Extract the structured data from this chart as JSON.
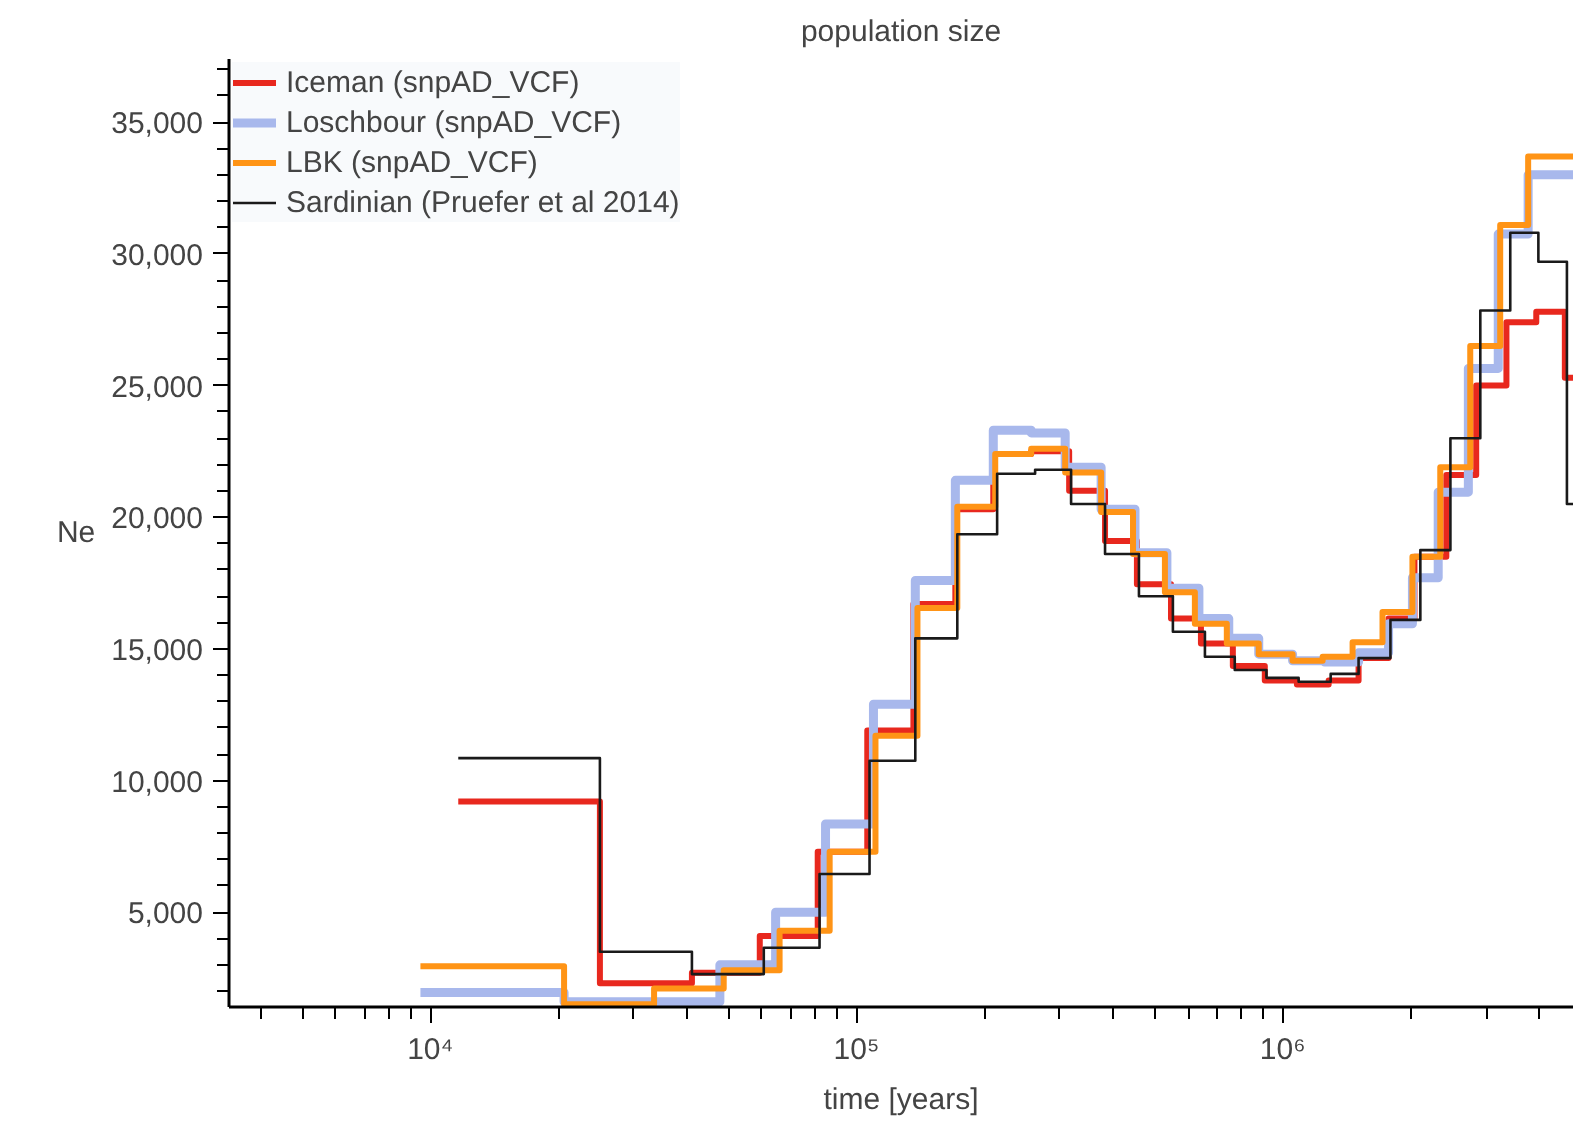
{
  "chart_data": {
    "type": "step",
    "title": "population size",
    "xlabel": "time [years]",
    "ylabel": "Ne",
    "log": "x",
    "legend": "top left",
    "grid": false,
    "xlim": [
      3370,
      4800000
    ],
    "ylim": [
      1400,
      37400
    ],
    "xticks": [
      {
        "value": 4000,
        "label": null
      },
      {
        "value": 5000,
        "label": null
      },
      {
        "value": 6000,
        "label": null
      },
      {
        "value": 7000,
        "label": null
      },
      {
        "value": 8000,
        "label": null
      },
      {
        "value": 9000,
        "label": null
      },
      {
        "value": 10000,
        "label": "10⁴"
      },
      {
        "value": 20000,
        "label": null
      },
      {
        "value": 30000,
        "label": null
      },
      {
        "value": 40000,
        "label": null
      },
      {
        "value": 50000,
        "label": null
      },
      {
        "value": 60000,
        "label": null
      },
      {
        "value": 70000,
        "label": null
      },
      {
        "value": 80000,
        "label": null
      },
      {
        "value": 90000,
        "label": null
      },
      {
        "value": 100000,
        "label": "10⁵"
      },
      {
        "value": 200000,
        "label": null
      },
      {
        "value": 300000,
        "label": null
      },
      {
        "value": 400000,
        "label": null
      },
      {
        "value": 500000,
        "label": null
      },
      {
        "value": 600000,
        "label": null
      },
      {
        "value": 700000,
        "label": null
      },
      {
        "value": 800000,
        "label": null
      },
      {
        "value": 900000,
        "label": null
      },
      {
        "value": 1000000,
        "label": "10⁶"
      },
      {
        "value": 2000000,
        "label": null
      },
      {
        "value": 3000000,
        "label": null
      },
      {
        "value": 4000000,
        "label": null
      }
    ],
    "yticks": [
      {
        "value": 2000,
        "label": null
      },
      {
        "value": 3000,
        "label": null
      },
      {
        "value": 4000,
        "label": null
      },
      {
        "value": 5000,
        "label": "5,000"
      },
      {
        "value": 6000,
        "label": null
      },
      {
        "value": 7000,
        "label": null
      },
      {
        "value": 8000,
        "label": null
      },
      {
        "value": 9000,
        "label": null
      },
      {
        "value": 10000,
        "label": "10,000"
      },
      {
        "value": 11000,
        "label": null
      },
      {
        "value": 12000,
        "label": null
      },
      {
        "value": 13000,
        "label": null
      },
      {
        "value": 14000,
        "label": null
      },
      {
        "value": 15000,
        "label": "15,000"
      },
      {
        "value": 16000,
        "label": null
      },
      {
        "value": 17000,
        "label": null
      },
      {
        "value": 18000,
        "label": null
      },
      {
        "value": 19000,
        "label": null
      },
      {
        "value": 20000,
        "label": "20,000"
      },
      {
        "value": 21000,
        "label": null
      },
      {
        "value": 22000,
        "label": null
      },
      {
        "value": 23000,
        "label": null
      },
      {
        "value": 24000,
        "label": null
      },
      {
        "value": 25000,
        "label": "25,000"
      },
      {
        "value": 26000,
        "label": null
      },
      {
        "value": 27000,
        "label": null
      },
      {
        "value": 28000,
        "label": null
      },
      {
        "value": 29000,
        "label": null
      },
      {
        "value": 30000,
        "label": "30,000"
      },
      {
        "value": 31000,
        "label": null
      },
      {
        "value": 32000,
        "label": null
      },
      {
        "value": 33000,
        "label": null
      },
      {
        "value": 34000,
        "label": null
      },
      {
        "value": 35000,
        "label": "35,000"
      },
      {
        "value": 36000,
        "label": null
      },
      {
        "value": 37000,
        "label": null
      }
    ],
    "series": [
      {
        "name": "Iceman (snpAD_VCF)",
        "color": "#e8281e",
        "x": [
          11630,
          25000,
          41100,
          59300,
          81100,
          106000,
          136000,
          170600,
          209400,
          257000,
          315500,
          383000,
          455000,
          547000,
          643000,
          764000,
          908000,
          1080000,
          1282000,
          1507000,
          1772000,
          2038000,
          2421000,
          2845000,
          3350000,
          3936000,
          4593000,
          4800000
        ],
        "values": [
          9200,
          2300,
          2700,
          4100,
          7300,
          11900,
          16700,
          20300,
          22400,
          22500,
          21000,
          19100,
          17450,
          16150,
          15200,
          14350,
          13800,
          13650,
          13800,
          14650,
          16150,
          18500,
          21600,
          25000,
          27400,
          27800,
          25300,
          25300
        ]
      },
      {
        "name": "Loschbour (snpAD_VCF)",
        "color": "#a8b8ec",
        "x": [
          9480,
          20600,
          47800,
          64600,
          84600,
          109600,
          137400,
          170600,
          209400,
          257000,
          308800,
          375000,
          450300,
          535000,
          636000,
          747300,
          878700,
          1055000,
          1254000,
          1507000,
          1772000,
          2016000,
          2317000,
          2727000,
          3205000,
          3767000,
          4800000
        ],
        "values": [
          1950,
          1600,
          3000,
          5000,
          8350,
          12900,
          17600,
          21400,
          23300,
          23200,
          21900,
          20300,
          18650,
          17300,
          16150,
          15400,
          14800,
          14550,
          14500,
          14850,
          15950,
          17700,
          20950,
          25650,
          30750,
          33000,
          33000
        ]
      },
      {
        "name": "LBK (snpAD_VCF)",
        "color": "#ff9416",
        "x": [
          9480,
          20600,
          33500,
          48800,
          66000,
          86500,
          110800,
          139000,
          172400,
          211600,
          257000,
          308800,
          375000,
          445500,
          529300,
          622300,
          739500,
          878700,
          1055000,
          1241000,
          1459000,
          1715000,
          2016000,
          2343000,
          2755000,
          3239000,
          3767000,
          4800000
        ],
        "values": [
          2950,
          1500,
          2100,
          2800,
          4300,
          7300,
          11700,
          16550,
          20400,
          22400,
          22600,
          21700,
          20200,
          18600,
          17150,
          15950,
          15200,
          14800,
          14550,
          14700,
          15250,
          16400,
          18500,
          21900,
          26500,
          31100,
          33700,
          33700
        ]
      },
      {
        "name": "Sardinian (Pruefer et al 2014)",
        "color": "#1a1a1a",
        "x": [
          11630,
          25000,
          41100,
          60600,
          81900,
          107300,
          137400,
          172400,
          213800,
          262500,
          318800,
          383000,
          460000,
          552600,
          657000,
          771900,
          916000,
          1090000,
          1296000,
          1507000,
          1790000,
          2104000,
          2475000,
          2909000,
          3420000,
          3981000,
          4645000,
          4800000
        ],
        "values": [
          10850,
          3500,
          2650,
          3650,
          6450,
          10750,
          15400,
          19350,
          21650,
          21800,
          20500,
          18600,
          17000,
          15650,
          14700,
          14200,
          13900,
          13750,
          14050,
          14650,
          16100,
          18750,
          23000,
          27850,
          30800,
          29700,
          20500,
          20500
        ]
      }
    ]
  }
}
